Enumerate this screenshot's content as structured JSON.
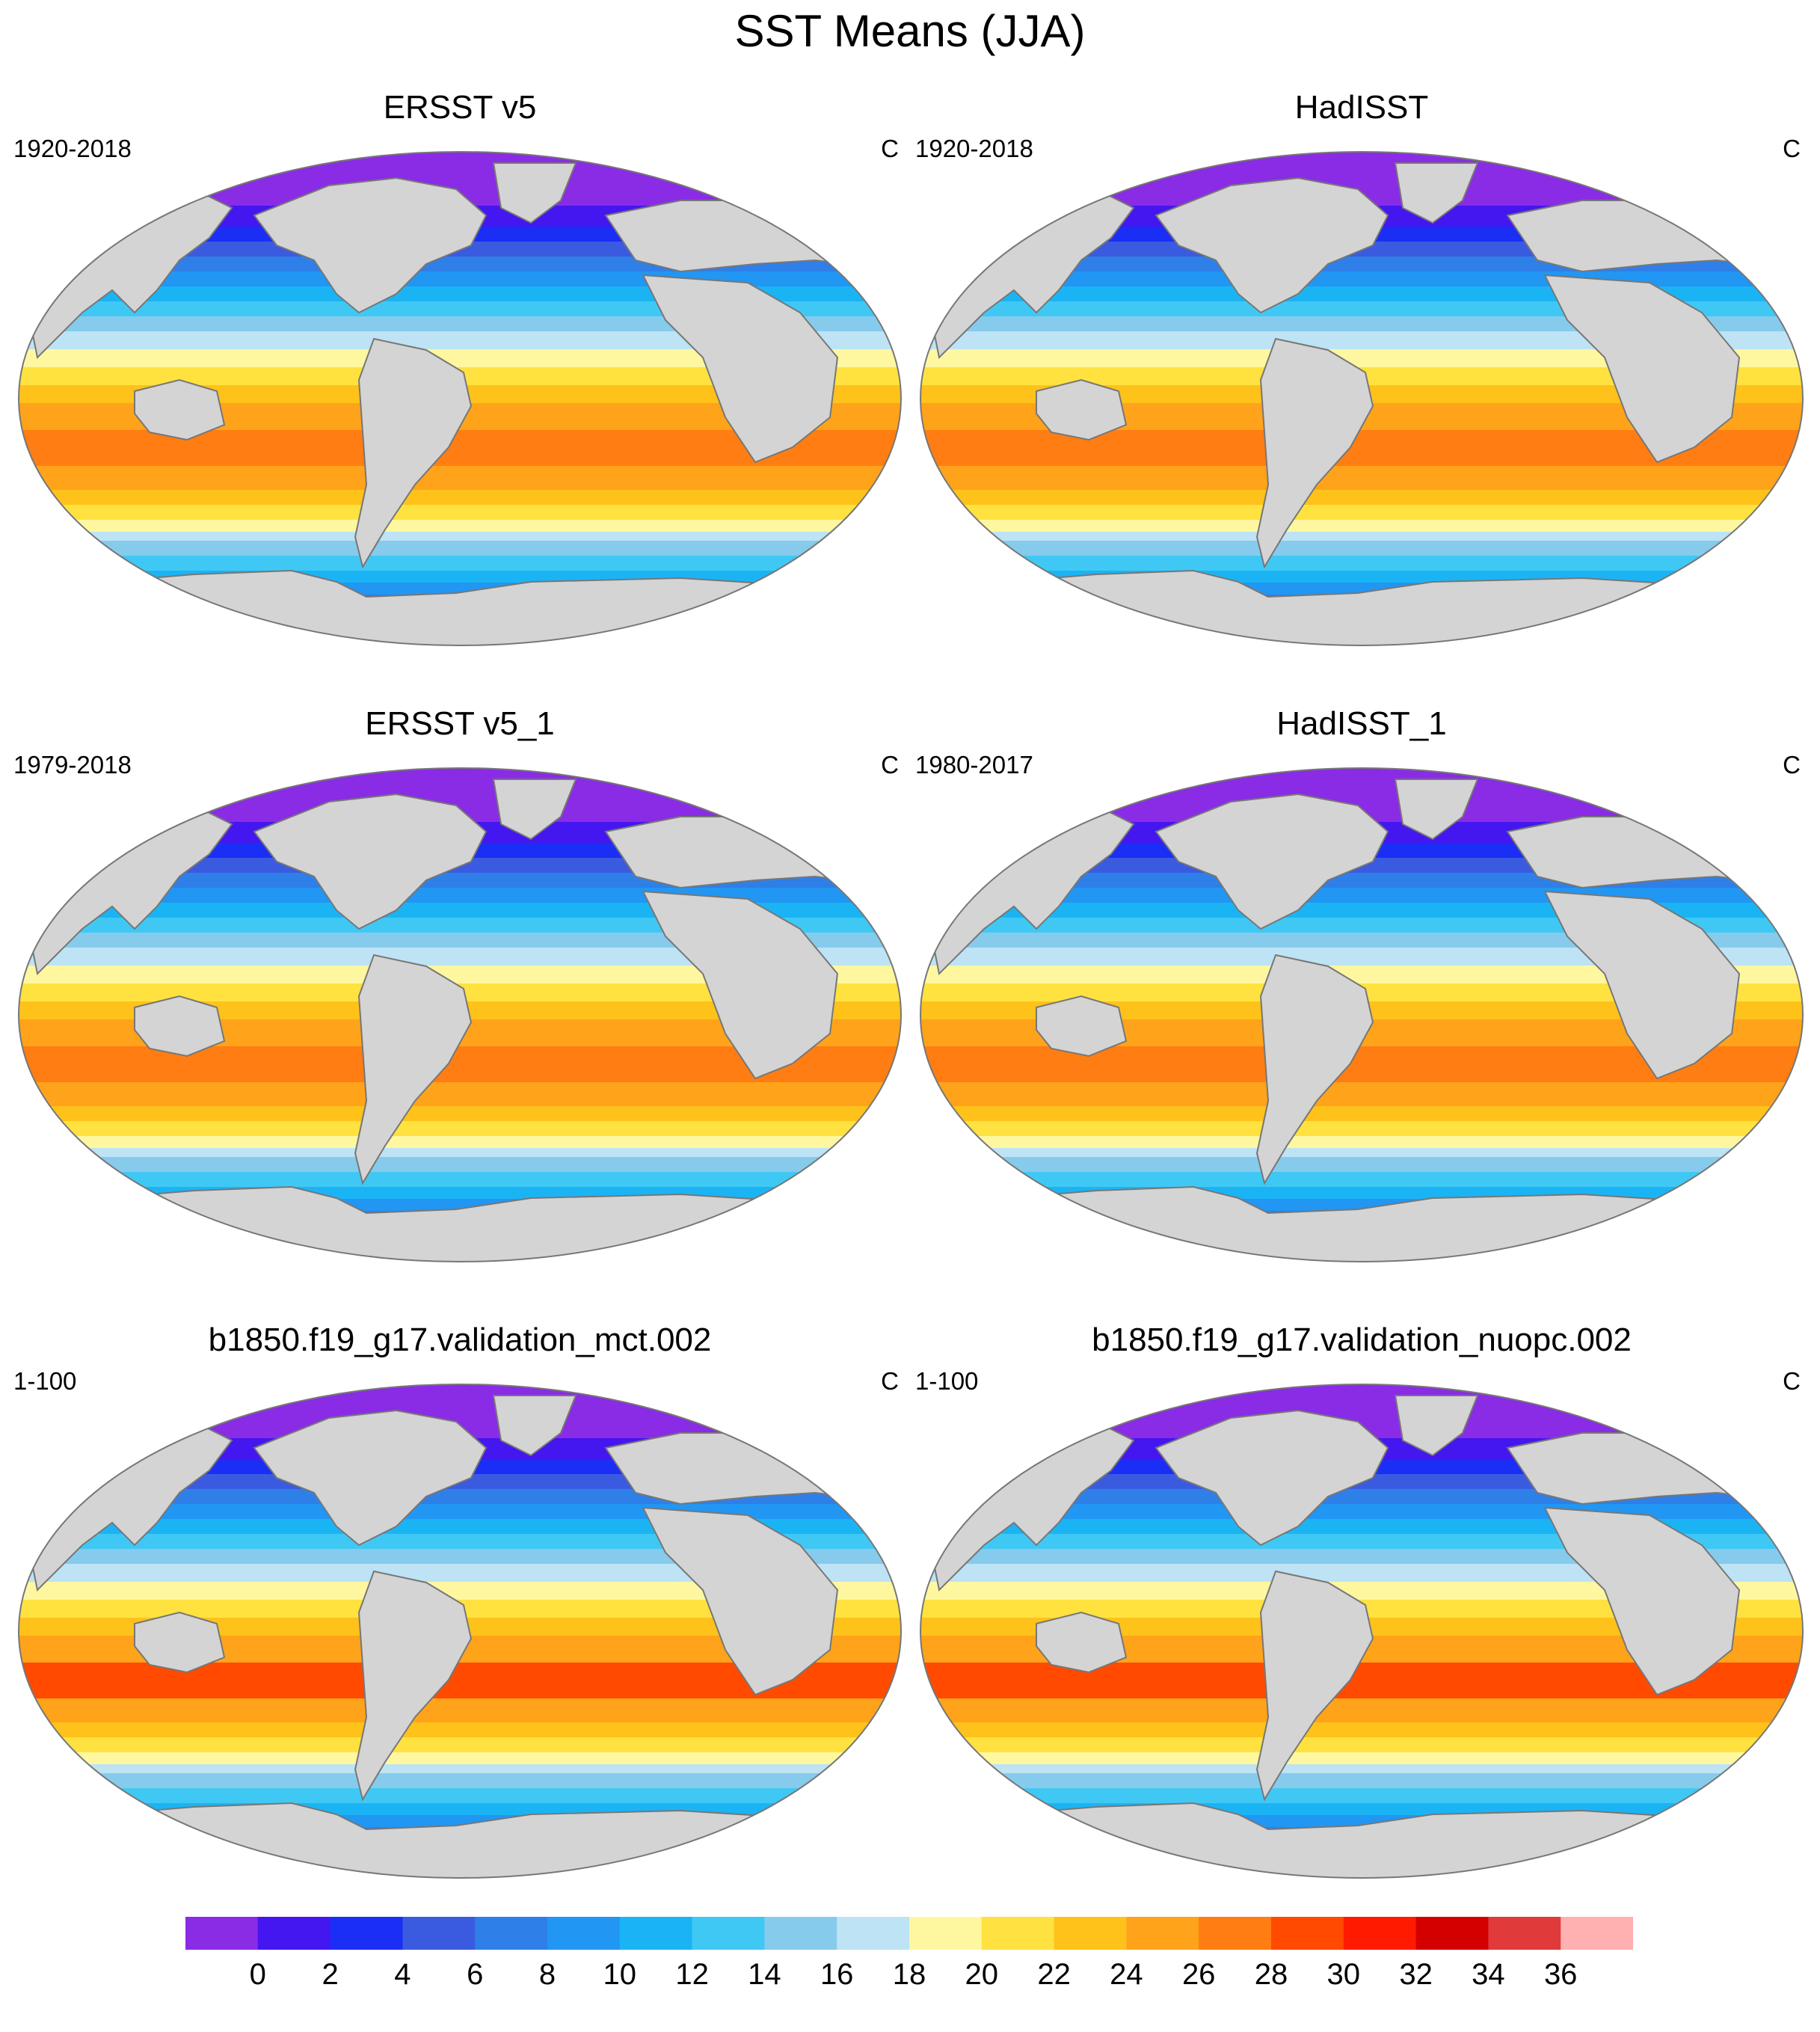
{
  "title": "SST Means (JJA)",
  "panels": [
    {
      "title": "ERSST v5",
      "period": "1920-2018",
      "units": "C",
      "variant": "obs"
    },
    {
      "title": "HadISST",
      "period": "1920-2018",
      "units": "C",
      "variant": "obs"
    },
    {
      "title": "ERSST v5_1",
      "period": "1979-2018",
      "units": "C",
      "variant": "obs"
    },
    {
      "title": "HadISST_1",
      "period": "1980-2017",
      "units": "C",
      "variant": "obs"
    },
    {
      "title": "b1850.f19_g17.validation_mct.002",
      "period": "1-100",
      "units": "C",
      "variant": "model"
    },
    {
      "title": "b1850.f19_g17.validation_nuopc.002",
      "period": "1-100",
      "units": "C",
      "variant": "model"
    }
  ],
  "colorbar": {
    "labels": [
      "0",
      "2",
      "4",
      "6",
      "8",
      "10",
      "12",
      "14",
      "16",
      "18",
      "20",
      "22",
      "24",
      "26",
      "28",
      "30",
      "32",
      "34",
      "36"
    ],
    "colors": [
      "#8a2be6",
      "#4416f0",
      "#1b2ef5",
      "#3a5be0",
      "#2f7fe8",
      "#2196f3",
      "#1ab4f5",
      "#40c8f5",
      "#86cbec",
      "#bde3f5",
      "#fff7a0",
      "#ffe240",
      "#ffc21a",
      "#ffa31a",
      "#ff7d12",
      "#ff4a00",
      "#ff1a00",
      "#d40000",
      "#e03a3a",
      "#ffb0b0"
    ]
  },
  "map_style": {
    "land_color": "#d4d4d4",
    "coast_color": "#777777",
    "missing_color": "#ffffff"
  }
}
